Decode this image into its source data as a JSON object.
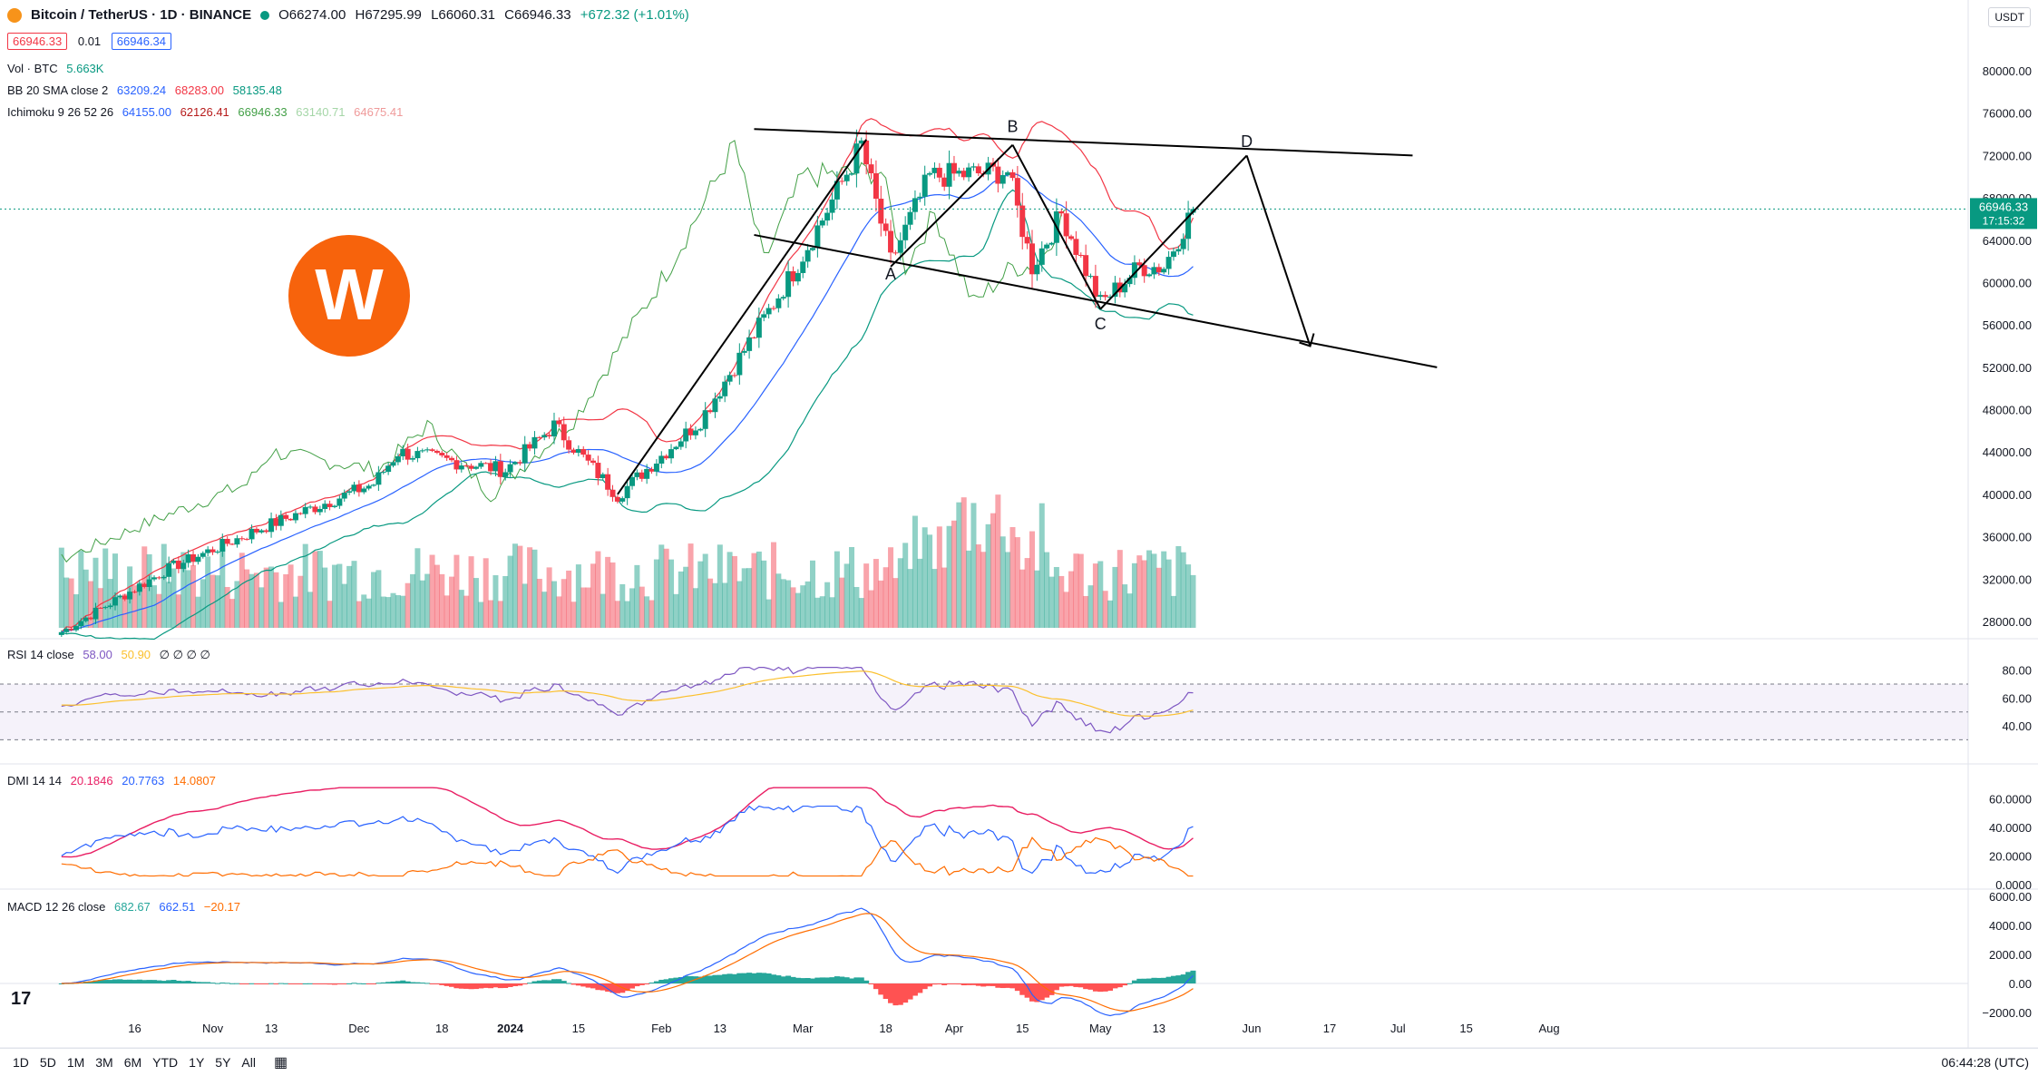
{
  "header": {
    "symbol": "Bitcoin / TetherUS · 1D · BINANCE",
    "open": "O66274.00",
    "high": "H67295.99",
    "low": "L66060.31",
    "close": "C66946.33",
    "change": "+672.32 (+1.01%)",
    "bid": "66946.33",
    "spread": "0.01",
    "ask": "66946.34",
    "currency": "USDT"
  },
  "indicators": {
    "vol": {
      "label": "Vol · BTC",
      "value": "5.663K"
    },
    "bb": {
      "label": "BB 20 SMA close 2",
      "v1": "63209.24",
      "v2": "68283.00",
      "v3": "58135.48"
    },
    "ichimoku": {
      "label": "Ichimoku 9 26 52 26",
      "v1": "64155.00",
      "v2": "62126.41",
      "v3": "66946.33",
      "v4": "63140.71",
      "v5": "64675.41"
    },
    "rsi": {
      "label": "RSI 14 close",
      "v1": "58.00",
      "v2": "50.90",
      "v3": "∅ ∅ ∅ ∅"
    },
    "dmi": {
      "label": "DMI 14 14",
      "v1": "20.1846",
      "v2": "20.7763",
      "v3": "14.0807"
    },
    "macd": {
      "label": "MACD 12 26 close",
      "v1": "682.67",
      "v2": "662.51",
      "v3": "−20.17"
    }
  },
  "price_label": {
    "value": "66946.33",
    "countdown": "17:15:32"
  },
  "bottom": {
    "ranges": [
      "1D",
      "5D",
      "1M",
      "3M",
      "6M",
      "YTD",
      "1Y",
      "5Y",
      "All"
    ],
    "time": "06:44:28 (UTC)"
  },
  "colors": {
    "up": "#089981",
    "down": "#f23645",
    "logo": "#f7630c"
  },
  "chart_data": {
    "type": "candlestick",
    "y_ticks": [
      "80000.00",
      "76000.00",
      "72000.00",
      "68000.00",
      "64000.00",
      "60000.00",
      "56000.00",
      "52000.00",
      "48000.00",
      "44000.00",
      "40000.00",
      "36000.00",
      "32000.00",
      "28000.00"
    ],
    "x_ticks": [
      "16",
      "Nov",
      "13",
      "Dec",
      "18",
      "2024",
      "15",
      "Feb",
      "13",
      "Mar",
      "18",
      "Apr",
      "15",
      "May",
      "13",
      "Jun",
      "17",
      "Jul",
      "15",
      "Aug"
    ],
    "rsi_ticks": [
      "80.00",
      "60.00",
      "40.00"
    ],
    "dmi_ticks": [
      "60.0000",
      "40.0000",
      "20.0000",
      "0.0000"
    ],
    "macd_ticks": [
      "6000.00",
      "4000.00",
      "2000.00",
      "0.00",
      "−2000.00"
    ],
    "wave_labels": [
      "A",
      "B",
      "C",
      "D"
    ],
    "price_anchors": [
      {
        "date": "2023-10-01",
        "close": 27000
      },
      {
        "date": "2023-10-23",
        "close": 33000
      },
      {
        "date": "2023-11-12",
        "close": 37000
      },
      {
        "date": "2023-12-04",
        "close": 41000
      },
      {
        "date": "2023-12-09",
        "close": 44000
      },
      {
        "date": "2023-12-31",
        "close": 42300
      },
      {
        "date": "2024-01-10",
        "close": 46500
      },
      {
        "date": "2024-01-23",
        "close": 39900
      },
      {
        "date": "2024-02-09",
        "close": 47000
      },
      {
        "date": "2024-02-28",
        "close": 61000
      },
      {
        "date": "2024-03-05",
        "close": 66000
      },
      {
        "date": "2024-03-13",
        "close": 73000
      },
      {
        "date": "2024-03-19",
        "close": 62000
      },
      {
        "date": "2024-03-27",
        "close": 70000
      },
      {
        "date": "2024-04-12",
        "close": 70500
      },
      {
        "date": "2024-04-17",
        "close": 61500
      },
      {
        "date": "2024-04-23",
        "close": 66500
      },
      {
        "date": "2024-05-01",
        "close": 58000
      },
      {
        "date": "2024-05-09",
        "close": 61500
      },
      {
        "date": "2024-05-14",
        "close": 61500
      },
      {
        "date": "2024-05-20",
        "close": 66946
      }
    ],
    "pattern_lines": [
      {
        "from": {
          "date": "2024-01-23",
          "price": 40000
        },
        "to": {
          "date": "2024-03-14",
          "price": 73500
        }
      },
      {
        "from": {
          "date": "2024-03-19",
          "price": 61500
        },
        "to": {
          "date": "2024-04-13",
          "price": 73000
        }
      },
      {
        "from": {
          "date": "2024-04-13",
          "price": 73000
        },
        "to": {
          "date": "2024-05-01",
          "price": 57500
        }
      },
      {
        "from": {
          "date": "2024-05-01",
          "price": 57500
        },
        "to": {
          "date": "2024-05-31",
          "price": 72000
        }
      },
      {
        "from": {
          "date": "2024-05-31",
          "price": 72000
        },
        "to": {
          "date": "2024-06-13",
          "price": 54000
        }
      },
      {
        "from": {
          "date": "2024-02-20",
          "price": 74500
        },
        "to": {
          "date": "2024-07-04",
          "price": 72000
        }
      },
      {
        "from": {
          "date": "2024-02-20",
          "price": 64500
        },
        "to": {
          "date": "2024-07-09",
          "price": 52000
        }
      }
    ]
  }
}
